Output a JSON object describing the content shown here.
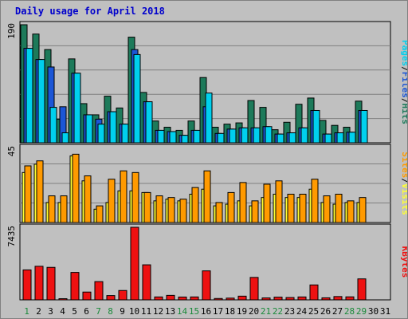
{
  "title": "Daily usage for April 2018",
  "colors": {
    "hits": "#1d7a5a",
    "files": "#1c56d6",
    "pages": "#00d0ee",
    "visits": "#ffff33",
    "sites": "#ff9a00",
    "kbytes": "#ee1111",
    "plotBg": "#c0c0c0",
    "grid": "#808080",
    "weekend": "#1a8a3a",
    "weekday": "#0000aa"
  },
  "chart_data": [
    {
      "type": "bar",
      "name": "hits-files-pages",
      "ymax_label": "190",
      "ymax": 190,
      "right_labels": [
        "Pages",
        "Files",
        "Hits"
      ],
      "x": [
        1,
        2,
        3,
        4,
        5,
        6,
        7,
        8,
        9,
        10,
        11,
        12,
        13,
        14,
        15,
        16,
        17,
        18,
        19,
        20,
        21,
        22,
        23,
        24,
        25,
        26,
        27,
        28,
        29,
        30,
        31
      ],
      "series": [
        {
          "name": "Hits",
          "values": [
            190,
            175,
            150,
            38,
            135,
            63,
            45,
            75,
            56,
            170,
            81,
            35,
            25,
            20,
            35,
            105,
            25,
            30,
            32,
            68,
            57,
            21,
            33,
            62,
            72,
            36,
            28,
            25,
            67,
            0,
            0
          ]
        },
        {
          "name": "Files",
          "values": [
            152,
            134,
            122,
            58,
            112,
            45,
            38,
            50,
            30,
            150,
            66,
            20,
            18,
            12,
            20,
            58,
            15,
            22,
            24,
            24,
            26,
            14,
            16,
            24,
            52,
            14,
            16,
            17,
            52,
            0,
            0
          ]
        },
        {
          "name": "Pages",
          "values": [
            152,
            134,
            57,
            16,
            112,
            45,
            30,
            50,
            30,
            142,
            66,
            20,
            18,
            12,
            20,
            80,
            15,
            22,
            24,
            24,
            26,
            14,
            16,
            24,
            52,
            14,
            16,
            17,
            52,
            0,
            0
          ]
        }
      ]
    },
    {
      "type": "bar",
      "name": "visits-sites",
      "ymax_label": "45",
      "ymax": 45,
      "right_labels": [
        "Sites",
        "Visits"
      ],
      "x": [
        1,
        2,
        3,
        4,
        5,
        6,
        7,
        8,
        9,
        10,
        11,
        12,
        13,
        14,
        15,
        16,
        17,
        18,
        19,
        20,
        21,
        22,
        23,
        24,
        25,
        26,
        27,
        28,
        29,
        30,
        31
      ],
      "series": [
        {
          "name": "Visits",
          "values": [
            30,
            35,
            12,
            12,
            40,
            25,
            8,
            12,
            19,
            19,
            18,
            13,
            14,
            13,
            17,
            20,
            10,
            11,
            13,
            10,
            15,
            17,
            15,
            15,
            20,
            12,
            11,
            12,
            12,
            0,
            0
          ]
        },
        {
          "name": "Sites",
          "values": [
            34,
            37,
            16,
            16,
            41,
            28,
            10,
            26,
            31,
            30,
            18,
            16,
            15,
            14,
            21,
            31,
            12,
            18,
            24,
            13,
            23,
            25,
            17,
            17,
            26,
            16,
            17,
            13,
            15,
            0,
            0
          ]
        }
      ]
    },
    {
      "type": "bar",
      "name": "kbytes",
      "ymax_label": "7435",
      "ymax": 7435,
      "right_labels": [
        "KBytes"
      ],
      "x": [
        1,
        2,
        3,
        4,
        5,
        6,
        7,
        8,
        9,
        10,
        11,
        12,
        13,
        14,
        15,
        16,
        17,
        18,
        19,
        20,
        21,
        22,
        23,
        24,
        25,
        26,
        27,
        28,
        29,
        30,
        31
      ],
      "series": [
        {
          "name": "KBytes",
          "values": [
            3070,
            3440,
            3330,
            120,
            2810,
            800,
            1870,
            440,
            960,
            7435,
            3590,
            300,
            460,
            290,
            300,
            2970,
            140,
            180,
            380,
            2300,
            200,
            280,
            240,
            300,
            1530,
            210,
            340,
            310,
            2150,
            0,
            0
          ]
        }
      ]
    }
  ],
  "xaxis": {
    "labels": [
      "1",
      "2",
      "3",
      "4",
      "5",
      "6",
      "7",
      "8",
      "9",
      "10",
      "11",
      "12",
      "13",
      "14",
      "15",
      "16",
      "17",
      "18",
      "19",
      "20",
      "21",
      "22",
      "23",
      "24",
      "25",
      "26",
      "27",
      "28",
      "29",
      "30",
      "31"
    ],
    "weekend": [
      1,
      7,
      8,
      14,
      15,
      21,
      22,
      28,
      29
    ]
  }
}
